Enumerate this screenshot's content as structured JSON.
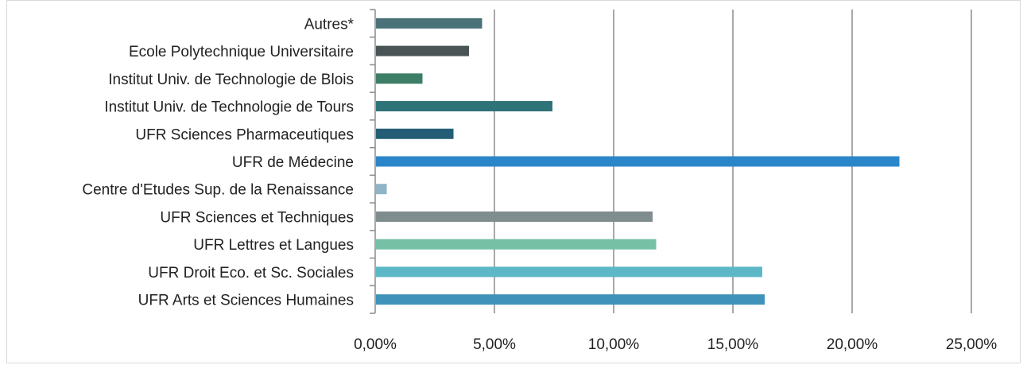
{
  "chart_data": {
    "type": "bar",
    "orientation": "horizontal",
    "title": "",
    "xlabel": "",
    "ylabel": "",
    "xlim": [
      0,
      25
    ],
    "x_ticks": [
      "0,00%",
      "5,00%",
      "10,00%",
      "15,00%",
      "20,00%",
      "25,00%"
    ],
    "grid": true,
    "legend": "none",
    "categories": [
      "Autres*",
      "Ecole Polytechnique Universitaire",
      "Institut Univ. de Technologie de Blois",
      "Institut Univ. de Technologie de Tours",
      "UFR Sciences Pharmaceutiques",
      "UFR de Médecine",
      "Centre d'Etudes Sup. de la Renaissance",
      "UFR Sciences et Techniques",
      "UFR Lettres et Langues",
      "UFR Droit Eco. et Sc. Sociales",
      "UFR Arts et Sciences Humaines"
    ],
    "values": [
      4.45,
      3.9,
      1.95,
      7.4,
      3.25,
      21.95,
      0.45,
      11.6,
      11.75,
      16.2,
      16.3
    ],
    "colors": [
      "#4a7178",
      "#4a5456",
      "#3d7f66",
      "#2e7378",
      "#245d76",
      "#2b86c9",
      "#8eb4c6",
      "#7f8d8f",
      "#76c0a6",
      "#5cb8c7",
      "#3f93ba"
    ]
  }
}
